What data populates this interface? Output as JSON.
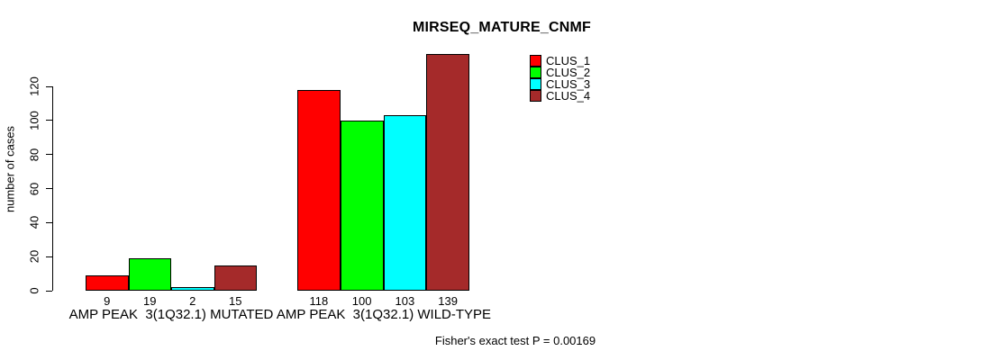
{
  "chart_data": {
    "type": "bar",
    "title": "MIRSEQ_MATURE_CNMF",
    "ylabel": "number of cases",
    "xlabel": "",
    "categories": [
      "AMP PEAK  3(1Q32.1) MUTATED",
      "AMP PEAK  3(1Q32.1) WILD-TYPE"
    ],
    "series": [
      {
        "name": "CLUS_1",
        "color": "#FF0000",
        "values": [
          9,
          118
        ]
      },
      {
        "name": "CLUS_2",
        "color": "#00FF00",
        "values": [
          19,
          100
        ]
      },
      {
        "name": "CLUS_3",
        "color": "#00FFFF",
        "values": [
          2,
          103
        ]
      },
      {
        "name": "CLUS_4",
        "color": "#A52A2A",
        "values": [
          15,
          139
        ]
      }
    ],
    "show_bar_values": true,
    "ylim": [
      0,
      139
    ],
    "yticks": [
      0,
      20,
      40,
      60,
      80,
      100,
      120
    ],
    "grid": false,
    "legend": {
      "position": "top-right",
      "entries": [
        "CLUS_1",
        "CLUS_2",
        "CLUS_3",
        "CLUS_4"
      ]
    },
    "annotation": "Fisher's exact test P = 0.00169"
  }
}
